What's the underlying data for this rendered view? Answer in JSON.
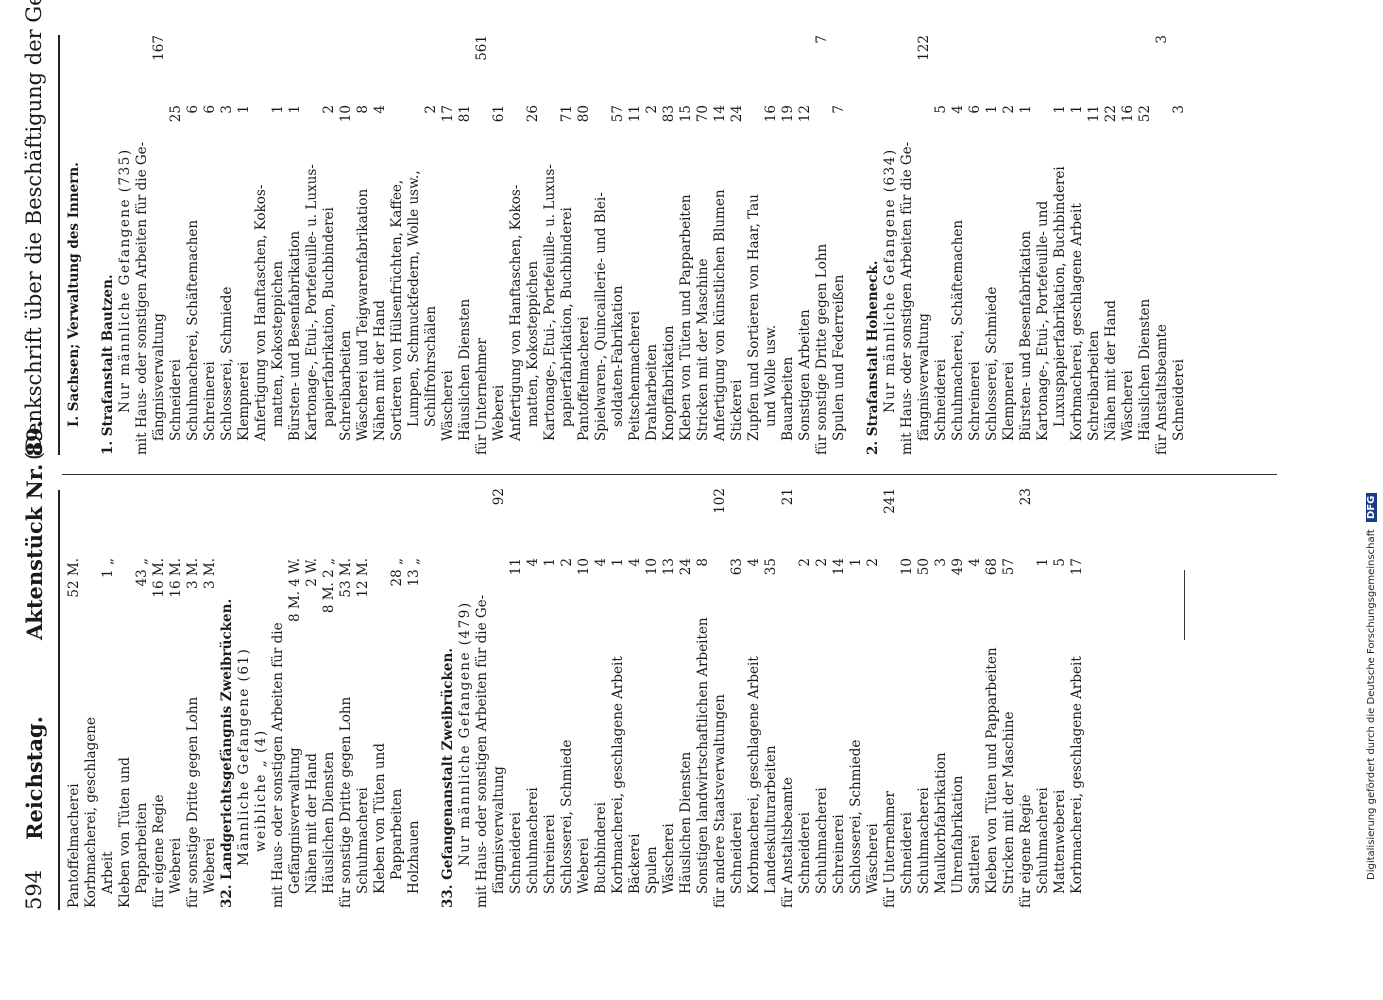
{
  "header": {
    "page_number": "594",
    "title": "Reichstag.",
    "doc": "Aktenstück Nr. 89.",
    "subject": "(Denkschrift über die Beschäftigung der Gefangenen.)"
  },
  "left_column": [
    {
      "t": "Pantoffelmacherei",
      "i": 0,
      "m": "52 M."
    },
    {
      "t": "Korbmacherei, geschlagene",
      "i": 0
    },
    {
      "t": "Arbeit",
      "i": 1,
      "m": "1 „"
    },
    {
      "t": "Kleben von Tüten und",
      "i": 0
    },
    {
      "t": "Papparbeiten",
      "i": 1,
      "m": "43 „"
    },
    {
      "t": "für eigene Regie",
      "i": 0,
      "m": "16 M."
    },
    {
      "t": "Weberei",
      "i": 1,
      "m": "16 M."
    },
    {
      "t": "für sonstige Dritte gegen Lohn",
      "i": 0,
      "m": "3 M."
    },
    {
      "t": "Weberei",
      "i": 1,
      "m": "3 M."
    },
    {
      "t": "32. Landgerichtsgefängnis Zweibrücken.",
      "i": 0,
      "s": "sec"
    },
    {
      "t": "Männliche Gefangene (61)",
      "i": 3,
      "s": "cap"
    },
    {
      "t": "weibliche „ (4)",
      "i": 4,
      "s": "cap"
    },
    {
      "t": "mit Haus- oder sonstigen Arbeiten für die",
      "i": 0
    },
    {
      "t": "Gefängnisverwaltung",
      "i": 1,
      "m": "8 M.  4 W."
    },
    {
      "t": "Nähen mit der Hand",
      "i": 1,
      "m": "2 W."
    },
    {
      "t": "Häuslichen Diensten",
      "i": 1,
      "m": "8 M.  2 „"
    },
    {
      "t": "für sonstige Dritte gegen Lohn",
      "i": 0,
      "m": "53 M."
    },
    {
      "t": "Schuhmacherei",
      "i": 1,
      "m": "12 M."
    },
    {
      "t": "Kleben von Tüten und",
      "i": 1
    },
    {
      "t": "Papparbeiten",
      "i": 2,
      "m": "28 „"
    },
    {
      "t": "Holzhauen",
      "i": 1,
      "m": "13 „"
    },
    {
      "t": "",
      "i": 0
    },
    {
      "t": "33. Gefangenanstalt Zweibrücken.",
      "i": 0,
      "s": "sec"
    },
    {
      "t": "Nur männliche Gefangene (479)",
      "i": 3,
      "s": "cap"
    },
    {
      "t": "mit Haus- oder sonstigen Arbeiten für die Ge-",
      "i": 0
    },
    {
      "t": "fängnisverwaltung",
      "i": 1,
      "n": "92"
    },
    {
      "t": "Schneiderei",
      "i": 1,
      "m": "11"
    },
    {
      "t": "Schuhmacherei",
      "i": 1,
      "m": "4"
    },
    {
      "t": "Schreinerei",
      "i": 1,
      "m": "1"
    },
    {
      "t": "Schlosserei, Schmiede",
      "i": 1,
      "m": "2"
    },
    {
      "t": "Weberei",
      "i": 1,
      "m": "10"
    },
    {
      "t": "Buchbinderei",
      "i": 1,
      "m": "4"
    },
    {
      "t": "Korbmacherei, geschlagene Arbeit",
      "i": 1,
      "m": "1"
    },
    {
      "t": "Bäckerei",
      "i": 1,
      "m": "4"
    },
    {
      "t": "Spulen",
      "i": 1,
      "m": "10"
    },
    {
      "t": "Wäscherei",
      "i": 1,
      "m": "13"
    },
    {
      "t": "Häuslichen Diensten",
      "i": 1,
      "m": "24"
    },
    {
      "t": "Sonstigen landwirtschaftlichen Arbeiten",
      "i": 1,
      "m": "8"
    },
    {
      "t": "für andere Staatsverwaltungen",
      "i": 0,
      "n": "102"
    },
    {
      "t": "Schneiderei",
      "i": 1,
      "m": "63"
    },
    {
      "t": "Korbmacherei, geschlagene Arbeit",
      "i": 1,
      "m": "4"
    },
    {
      "t": "Landeskulturarbeiten",
      "i": 1,
      "m": "35"
    },
    {
      "t": "für Anstaltsbeamte",
      "i": 0,
      "n": "21"
    },
    {
      "t": "Schneiderei",
      "i": 1,
      "m": "2"
    },
    {
      "t": "Schuhmacherei",
      "i": 1,
      "m": "2"
    },
    {
      "t": "Schreinerei",
      "i": 1,
      "m": "14"
    },
    {
      "t": "Schlosserei, Schmiede",
      "i": 1,
      "m": "1"
    },
    {
      "t": "Wäscherei",
      "i": 1,
      "m": "2"
    },
    {
      "t": "für Unternehmer",
      "i": 0,
      "n": "241"
    },
    {
      "t": "Schneiderei",
      "i": 1,
      "m": "10"
    },
    {
      "t": "Schuhmacherei",
      "i": 1,
      "m": "50"
    },
    {
      "t": "Maulkorbfabrikation",
      "i": 1,
      "m": "3"
    },
    {
      "t": "Uhrenfabrikation",
      "i": 1,
      "m": "49"
    },
    {
      "t": "Sattlerei",
      "i": 1,
      "m": "4"
    },
    {
      "t": "Kleben von Tüten und Papparbeiten",
      "i": 1,
      "m": "68"
    },
    {
      "t": "Stricken mit der Maschine",
      "i": 1,
      "m": "57"
    },
    {
      "t": "für eigene Regie",
      "i": 0,
      "n": "23"
    },
    {
      "t": "Schuhmacherei",
      "i": 1,
      "m": "1"
    },
    {
      "t": "Mattenweberei",
      "i": 1,
      "m": "5"
    },
    {
      "t": "Korbmacherei, geschlagene Arbeit",
      "i": 1,
      "m": "17"
    }
  ],
  "right_column": [
    {
      "t": "I. Sachsen; Verwaltung des Innern.",
      "i": 2,
      "s": "sec"
    },
    {
      "t": "",
      "i": 0
    },
    {
      "t": "1. Strafanstalt Bautzen.",
      "i": 0,
      "s": "sec"
    },
    {
      "t": "Nur männliche Gefangene (735)",
      "i": 3,
      "s": "cap"
    },
    {
      "t": "mit Haus- oder sonstigen Arbeiten für die Ge-",
      "i": 0
    },
    {
      "t": "fängnisverwaltung",
      "i": 1,
      "n": "167"
    },
    {
      "t": "Schneiderei",
      "i": 1,
      "m": "25"
    },
    {
      "t": "Schuhmacherei, Schäftemachen",
      "i": 1,
      "m": "6"
    },
    {
      "t": "Schreinerei",
      "i": 1,
      "m": "6"
    },
    {
      "t": "Schlosserei, Schmiede",
      "i": 1,
      "m": "3"
    },
    {
      "t": "Klempnerei",
      "i": 1,
      "m": "1"
    },
    {
      "t": "Anfertigung von Hanftaschen, Kokos-",
      "i": 1
    },
    {
      "t": "matten, Kokosteppichen",
      "i": 2,
      "m": "1"
    },
    {
      "t": "Bürsten- und Besenfabrikation",
      "i": 1,
      "m": "1"
    },
    {
      "t": "Kartonage-, Etui-, Portefeuille- u. Luxus-",
      "i": 1
    },
    {
      "t": "papierfabrikation, Buchbinderei",
      "i": 2,
      "m": "2"
    },
    {
      "t": "Schreibarbeiten",
      "i": 1,
      "m": "10"
    },
    {
      "t": "Wäscherei und Teigwarenfabrikation",
      "i": 1,
      "m": "8"
    },
    {
      "t": "Nähen mit der Hand",
      "i": 1,
      "m": "4"
    },
    {
      "t": "Sortieren von Hülsenfrüchten, Kaffee,",
      "i": 1
    },
    {
      "t": "Lumpen, Schmuckfedern, Wolle usw.,",
      "i": 2
    },
    {
      "t": "Schilfrohrschälen",
      "i": 2,
      "m": "2"
    },
    {
      "t": "Wäscherei",
      "i": 1,
      "m": "17"
    },
    {
      "t": "Häuslichen Diensten",
      "i": 1,
      "m": "81"
    },
    {
      "t": "für Unternehmer",
      "i": 0,
      "n": "561"
    },
    {
      "t": "Weberei",
      "i": 1,
      "m": "61"
    },
    {
      "t": "Anfertigung von Hanftaschen, Kokos-",
      "i": 1
    },
    {
      "t": "matten, Kokosteppichen",
      "i": 2,
      "m": "26"
    },
    {
      "t": "Kartonage-, Etui-, Portefeuille- u. Luxus-",
      "i": 1
    },
    {
      "t": "papierfabrikation, Buchbinderei",
      "i": 2,
      "m": "71"
    },
    {
      "t": "Pantoffelmacherei",
      "i": 1,
      "m": "80"
    },
    {
      "t": "Spielwaren-, Quincaillerie- und Blei-",
      "i": 1
    },
    {
      "t": "soldaten-Fabrikation",
      "i": 2,
      "m": "57"
    },
    {
      "t": "Peitschenmacherei",
      "i": 1,
      "m": "11"
    },
    {
      "t": "Drahtarbeiten",
      "i": 1,
      "m": "2"
    },
    {
      "t": "Knopffabrikation",
      "i": 1,
      "m": "83"
    },
    {
      "t": "Kleben von Tüten und Papparbeiten",
      "i": 1,
      "m": "15"
    },
    {
      "t": "Stricken mit der Maschine",
      "i": 1,
      "m": "70"
    },
    {
      "t": "Anfertigung von künstlichen Blumen",
      "i": 1,
      "m": "14"
    },
    {
      "t": "Stickerei",
      "i": 1,
      "m": "24"
    },
    {
      "t": "Zupfen und Sortieren von Haar, Tau",
      "i": 1
    },
    {
      "t": "und Wolle usw.",
      "i": 2,
      "m": "16"
    },
    {
      "t": "Bauarbeiten",
      "i": 1,
      "m": "19"
    },
    {
      "t": "Sonstigen Arbeiten",
      "i": 1,
      "m": "12"
    },
    {
      "t": "für sonstige Dritte gegen Lohn",
      "i": 0,
      "n": "7"
    },
    {
      "t": "Spulen und Federreißen",
      "i": 1,
      "m": "7"
    },
    {
      "t": "",
      "i": 0
    },
    {
      "t": "2. Strafanstalt Hoheneck.",
      "i": 0,
      "s": "sec"
    },
    {
      "t": "Nur männliche Gefangene (634)",
      "i": 3,
      "s": "cap"
    },
    {
      "t": "mit Haus- oder sonstigen Arbeiten für die Ge-",
      "i": 0
    },
    {
      "t": "fängnisverwaltung",
      "i": 1,
      "n": "122"
    },
    {
      "t": "Schneiderei",
      "i": 1,
      "m": "5"
    },
    {
      "t": "Schuhmacherei, Schäftemachen",
      "i": 1,
      "m": "4"
    },
    {
      "t": "Schreinerei",
      "i": 1,
      "m": "6"
    },
    {
      "t": "Schlosserei, Schmiede",
      "i": 1,
      "m": "1"
    },
    {
      "t": "Klempnerei",
      "i": 1,
      "m": "2"
    },
    {
      "t": "Bürsten- und Besenfabrikation",
      "i": 1,
      "m": "1"
    },
    {
      "t": "Kartonage-, Etui-, Portefeuille- und",
      "i": 1
    },
    {
      "t": "Luxuspapierfabrikation, Buchbinderei",
      "i": 2,
      "m": "1"
    },
    {
      "t": "Korbmacherei, geschlagene Arbeit",
      "i": 1,
      "m": "1"
    },
    {
      "t": "Schreibarbeiten",
      "i": 1,
      "m": "11"
    },
    {
      "t": "Nähen mit der Hand",
      "i": 1,
      "m": "22"
    },
    {
      "t": "Wäscherei",
      "i": 1,
      "m": "16"
    },
    {
      "t": "Häuslichen Diensten",
      "i": 1,
      "m": "52"
    },
    {
      "t": "für Anstaltsbeamte",
      "i": 0,
      "n": "3"
    },
    {
      "t": "Schneiderei",
      "i": 1,
      "m": "3"
    }
  ],
  "footer": {
    "text": "Digitalisierung gefördert durch die Deutsche Forschungsgemeinschaft",
    "logo": "DFG"
  }
}
